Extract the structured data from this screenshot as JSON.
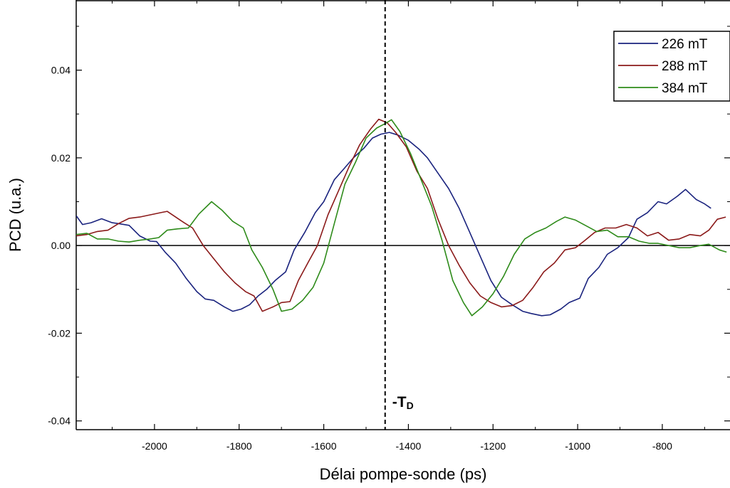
{
  "chart_data": {
    "type": "line",
    "xlabel": "Délai pompe-sonde (ps)",
    "ylabel": "PCD (u.a.)",
    "xlim": [
      -2185,
      -640
    ],
    "ylim": [
      -0.042,
      0.056
    ],
    "x_ticks": [
      -2000,
      -1800,
      -1600,
      -1400,
      -1200,
      -1000,
      -800
    ],
    "x_tick_labels": [
      "-2000",
      "-1800",
      "-1600",
      "-1400",
      "-1200",
      "-1000",
      "-800"
    ],
    "y_ticks": [
      -0.04,
      -0.02,
      0.0,
      0.02,
      0.04
    ],
    "y_tick_labels": [
      "-0.04",
      "-0.02",
      "0.00",
      "0.02",
      "0.04"
    ],
    "grid": false,
    "legend_position": "top-right",
    "zero_line": true,
    "annotation": {
      "x": -1455,
      "label_main": "-T",
      "label_sub": "D"
    },
    "series": [
      {
        "name": "226 mT",
        "color": "#1a237e",
        "points": [
          [
            -2185,
            0.0068
          ],
          [
            -2170,
            0.0048
          ],
          [
            -2150,
            0.0052
          ],
          [
            -2125,
            0.0061
          ],
          [
            -2100,
            0.0052
          ],
          [
            -2085,
            0.005
          ],
          [
            -2060,
            0.0046
          ],
          [
            -2035,
            0.0022
          ],
          [
            -2010,
            0.001
          ],
          [
            -1995,
            0.0009
          ],
          [
            -1975,
            -0.0015
          ],
          [
            -1950,
            -0.004
          ],
          [
            -1925,
            -0.0075
          ],
          [
            -1900,
            -0.0105
          ],
          [
            -1880,
            -0.0122
          ],
          [
            -1860,
            -0.0125
          ],
          [
            -1835,
            -0.014
          ],
          [
            -1815,
            -0.015
          ],
          [
            -1795,
            -0.0145
          ],
          [
            -1775,
            -0.0135
          ],
          [
            -1755,
            -0.0115
          ],
          [
            -1735,
            -0.01
          ],
          [
            -1715,
            -0.008
          ],
          [
            -1690,
            -0.006
          ],
          [
            -1670,
            -0.001
          ],
          [
            -1645,
            0.003
          ],
          [
            -1620,
            0.0075
          ],
          [
            -1600,
            0.01
          ],
          [
            -1575,
            0.015
          ],
          [
            -1555,
            0.0172
          ],
          [
            -1530,
            0.02
          ],
          [
            -1505,
            0.0222
          ],
          [
            -1485,
            0.0245
          ],
          [
            -1465,
            0.0254
          ],
          [
            -1445,
            0.0258
          ],
          [
            -1425,
            0.0252
          ],
          [
            -1400,
            0.024
          ],
          [
            -1375,
            0.022
          ],
          [
            -1355,
            0.02
          ],
          [
            -1330,
            0.0165
          ],
          [
            -1305,
            0.013
          ],
          [
            -1280,
            0.0085
          ],
          [
            -1255,
            0.003
          ],
          [
            -1230,
            -0.0025
          ],
          [
            -1205,
            -0.008
          ],
          [
            -1180,
            -0.0118
          ],
          [
            -1155,
            -0.0135
          ],
          [
            -1130,
            -0.015
          ],
          [
            -1110,
            -0.0155
          ],
          [
            -1085,
            -0.016
          ],
          [
            -1065,
            -0.0158
          ],
          [
            -1040,
            -0.0145
          ],
          [
            -1020,
            -0.013
          ],
          [
            -995,
            -0.012
          ],
          [
            -975,
            -0.0075
          ],
          [
            -950,
            -0.005
          ],
          [
            -930,
            -0.002
          ],
          [
            -905,
            -0.0005
          ],
          [
            -880,
            0.0018
          ],
          [
            -860,
            0.006
          ],
          [
            -835,
            0.0075
          ],
          [
            -810,
            0.01
          ],
          [
            -790,
            0.0095
          ],
          [
            -765,
            0.0112
          ],
          [
            -745,
            0.0128
          ],
          [
            -720,
            0.0105
          ],
          [
            -700,
            0.0095
          ],
          [
            -685,
            0.0085
          ]
        ]
      },
      {
        "name": "288 mT",
        "color": "#8b1a1a",
        "points": [
          [
            -2185,
            0.0022
          ],
          [
            -2160,
            0.0025
          ],
          [
            -2135,
            0.0032
          ],
          [
            -2110,
            0.0035
          ],
          [
            -2085,
            0.005
          ],
          [
            -2060,
            0.0062
          ],
          [
            -2035,
            0.0065
          ],
          [
            -2010,
            0.007
          ],
          [
            -1985,
            0.0075
          ],
          [
            -1970,
            0.0078
          ],
          [
            -1950,
            0.0065
          ],
          [
            -1930,
            0.0052
          ],
          [
            -1910,
            0.004
          ],
          [
            -1885,
            0.0
          ],
          [
            -1860,
            -0.003
          ],
          [
            -1835,
            -0.006
          ],
          [
            -1810,
            -0.0085
          ],
          [
            -1785,
            -0.0105
          ],
          [
            -1765,
            -0.0115
          ],
          [
            -1745,
            -0.015
          ],
          [
            -1720,
            -0.014
          ],
          [
            -1700,
            -0.013
          ],
          [
            -1680,
            -0.0128
          ],
          [
            -1660,
            -0.008
          ],
          [
            -1635,
            -0.0035
          ],
          [
            -1615,
            0.0
          ],
          [
            -1590,
            0.007
          ],
          [
            -1565,
            0.0125
          ],
          [
            -1540,
            0.018
          ],
          [
            -1515,
            0.023
          ],
          [
            -1490,
            0.0265
          ],
          [
            -1470,
            0.0288
          ],
          [
            -1450,
            0.028
          ],
          [
            -1430,
            0.0258
          ],
          [
            -1405,
            0.0225
          ],
          [
            -1380,
            0.017
          ],
          [
            -1355,
            0.013
          ],
          [
            -1330,
            0.006
          ],
          [
            -1305,
            0.0
          ],
          [
            -1280,
            -0.0045
          ],
          [
            -1255,
            -0.0085
          ],
          [
            -1230,
            -0.0115
          ],
          [
            -1205,
            -0.013
          ],
          [
            -1180,
            -0.014
          ],
          [
            -1155,
            -0.0137
          ],
          [
            -1130,
            -0.0125
          ],
          [
            -1105,
            -0.0095
          ],
          [
            -1080,
            -0.006
          ],
          [
            -1055,
            -0.004
          ],
          [
            -1030,
            -0.001
          ],
          [
            -1005,
            -0.0005
          ],
          [
            -985,
            0.001
          ],
          [
            -960,
            0.003
          ],
          [
            -935,
            0.004
          ],
          [
            -910,
            0.004
          ],
          [
            -885,
            0.0048
          ],
          [
            -860,
            0.004
          ],
          [
            -835,
            0.0022
          ],
          [
            -810,
            0.003
          ],
          [
            -785,
            0.0012
          ],
          [
            -760,
            0.0015
          ],
          [
            -735,
            0.0025
          ],
          [
            -710,
            0.0022
          ],
          [
            -690,
            0.0035
          ],
          [
            -670,
            0.006
          ],
          [
            -650,
            0.0065
          ]
        ]
      },
      {
        "name": "384 mT",
        "color": "#2e8b1a",
        "points": [
          [
            -2185,
            0.0025
          ],
          [
            -2160,
            0.0028
          ],
          [
            -2135,
            0.0015
          ],
          [
            -2110,
            0.0015
          ],
          [
            -2085,
            0.001
          ],
          [
            -2060,
            0.0008
          ],
          [
            -2035,
            0.0012
          ],
          [
            -2010,
            0.0015
          ],
          [
            -1990,
            0.0018
          ],
          [
            -1970,
            0.0035
          ],
          [
            -1945,
            0.0038
          ],
          [
            -1920,
            0.004
          ],
          [
            -1895,
            0.0072
          ],
          [
            -1865,
            0.01
          ],
          [
            -1840,
            0.008
          ],
          [
            -1815,
            0.0055
          ],
          [
            -1790,
            0.004
          ],
          [
            -1770,
            -0.001
          ],
          [
            -1745,
            -0.005
          ],
          [
            -1720,
            -0.01
          ],
          [
            -1700,
            -0.015
          ],
          [
            -1675,
            -0.0145
          ],
          [
            -1650,
            -0.0125
          ],
          [
            -1625,
            -0.0095
          ],
          [
            -1600,
            -0.004
          ],
          [
            -1575,
            0.005
          ],
          [
            -1550,
            0.014
          ],
          [
            -1525,
            0.019
          ],
          [
            -1500,
            0.0245
          ],
          [
            -1475,
            0.0268
          ],
          [
            -1455,
            0.0278
          ],
          [
            -1440,
            0.0287
          ],
          [
            -1420,
            0.026
          ],
          [
            -1395,
            0.021
          ],
          [
            -1370,
            0.015
          ],
          [
            -1345,
            0.009
          ],
          [
            -1320,
            0.001
          ],
          [
            -1295,
            -0.008
          ],
          [
            -1270,
            -0.013
          ],
          [
            -1250,
            -0.016
          ],
          [
            -1225,
            -0.014
          ],
          [
            -1200,
            -0.011
          ],
          [
            -1175,
            -0.007
          ],
          [
            -1150,
            -0.002
          ],
          [
            -1125,
            0.0015
          ],
          [
            -1100,
            0.003
          ],
          [
            -1075,
            0.004
          ],
          [
            -1050,
            0.0055
          ],
          [
            -1030,
            0.0065
          ],
          [
            -1005,
            0.0058
          ],
          [
            -980,
            0.0045
          ],
          [
            -955,
            0.0032
          ],
          [
            -930,
            0.0035
          ],
          [
            -905,
            0.002
          ],
          [
            -880,
            0.002
          ],
          [
            -855,
            0.001
          ],
          [
            -830,
            0.0005
          ],
          [
            -810,
            0.0005
          ],
          [
            -785,
            0.0
          ],
          [
            -760,
            -0.0005
          ],
          [
            -735,
            -0.0005
          ],
          [
            -710,
            0.0
          ],
          [
            -690,
            0.0003
          ],
          [
            -665,
            -0.001
          ],
          [
            -648,
            -0.0015
          ]
        ]
      }
    ]
  }
}
